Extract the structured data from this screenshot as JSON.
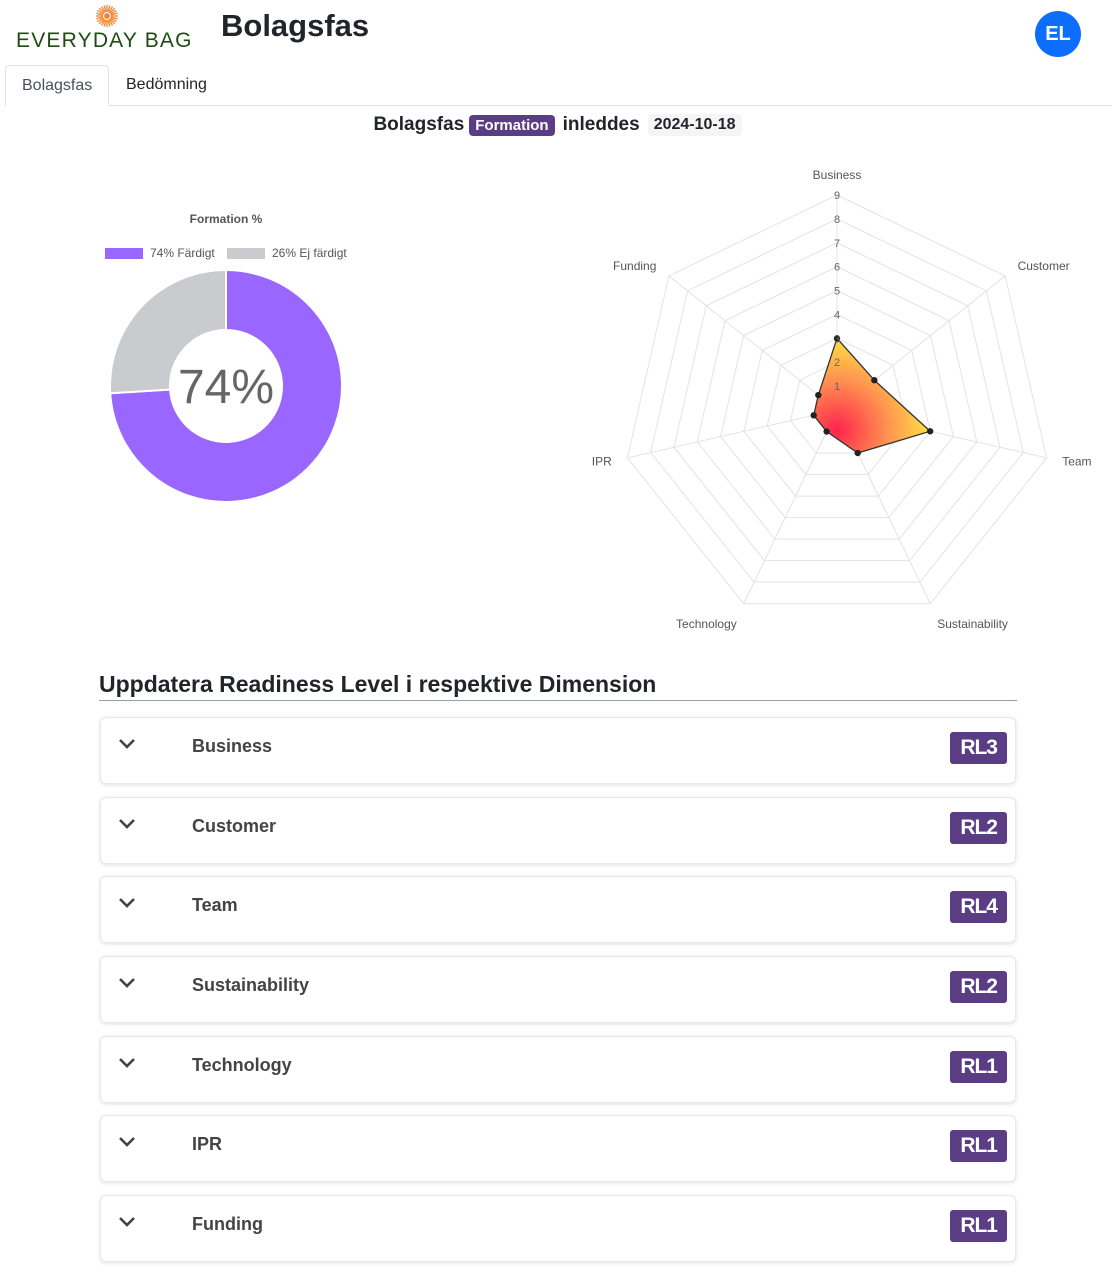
{
  "header": {
    "logo_text": "EVERYDAY BAG",
    "title": "Bolagsfas",
    "avatar_initials": "EL"
  },
  "tabs": [
    {
      "label": "Bolagsfas",
      "active": true
    },
    {
      "label": "Bedömning",
      "active": false
    }
  ],
  "phase": {
    "prefix": "Bolagsfas",
    "badge": "Formation",
    "middle": "inleddes",
    "date": "2024-10-18"
  },
  "colors": {
    "accent_purple": "#5a3d85",
    "donut_done": "#9966ff",
    "donut_remaining": "#c9cbcf",
    "avatar_blue": "#0d6efd"
  },
  "chart_data": [
    {
      "type": "pie",
      "title": "Formation %",
      "center_label": "74%",
      "categories": [
        "74% Färdigt",
        "26% Ej färdigt"
      ],
      "values": [
        74,
        26
      ],
      "legend": "top"
    },
    {
      "type": "radar",
      "categories": [
        "Business",
        "Customer",
        "Team",
        "Sustainability",
        "Technology",
        "IPR",
        "Funding"
      ],
      "values": [
        3,
        2,
        4,
        2,
        1,
        1,
        1
      ],
      "scale_ticks": [
        "1",
        "2",
        "3",
        "4",
        "5",
        "6",
        "7",
        "8",
        "9"
      ],
      "rlim": [
        0,
        9
      ]
    }
  ],
  "section": {
    "title": "Uppdatera Readiness Level i respektive Dimension",
    "items": [
      {
        "label": "Business",
        "level": "RL3"
      },
      {
        "label": "Customer",
        "level": "RL2"
      },
      {
        "label": "Team",
        "level": "RL4"
      },
      {
        "label": "Sustainability",
        "level": "RL2"
      },
      {
        "label": "Technology",
        "level": "RL1"
      },
      {
        "label": "IPR",
        "level": "RL1"
      },
      {
        "label": "Funding",
        "level": "RL1"
      }
    ]
  }
}
